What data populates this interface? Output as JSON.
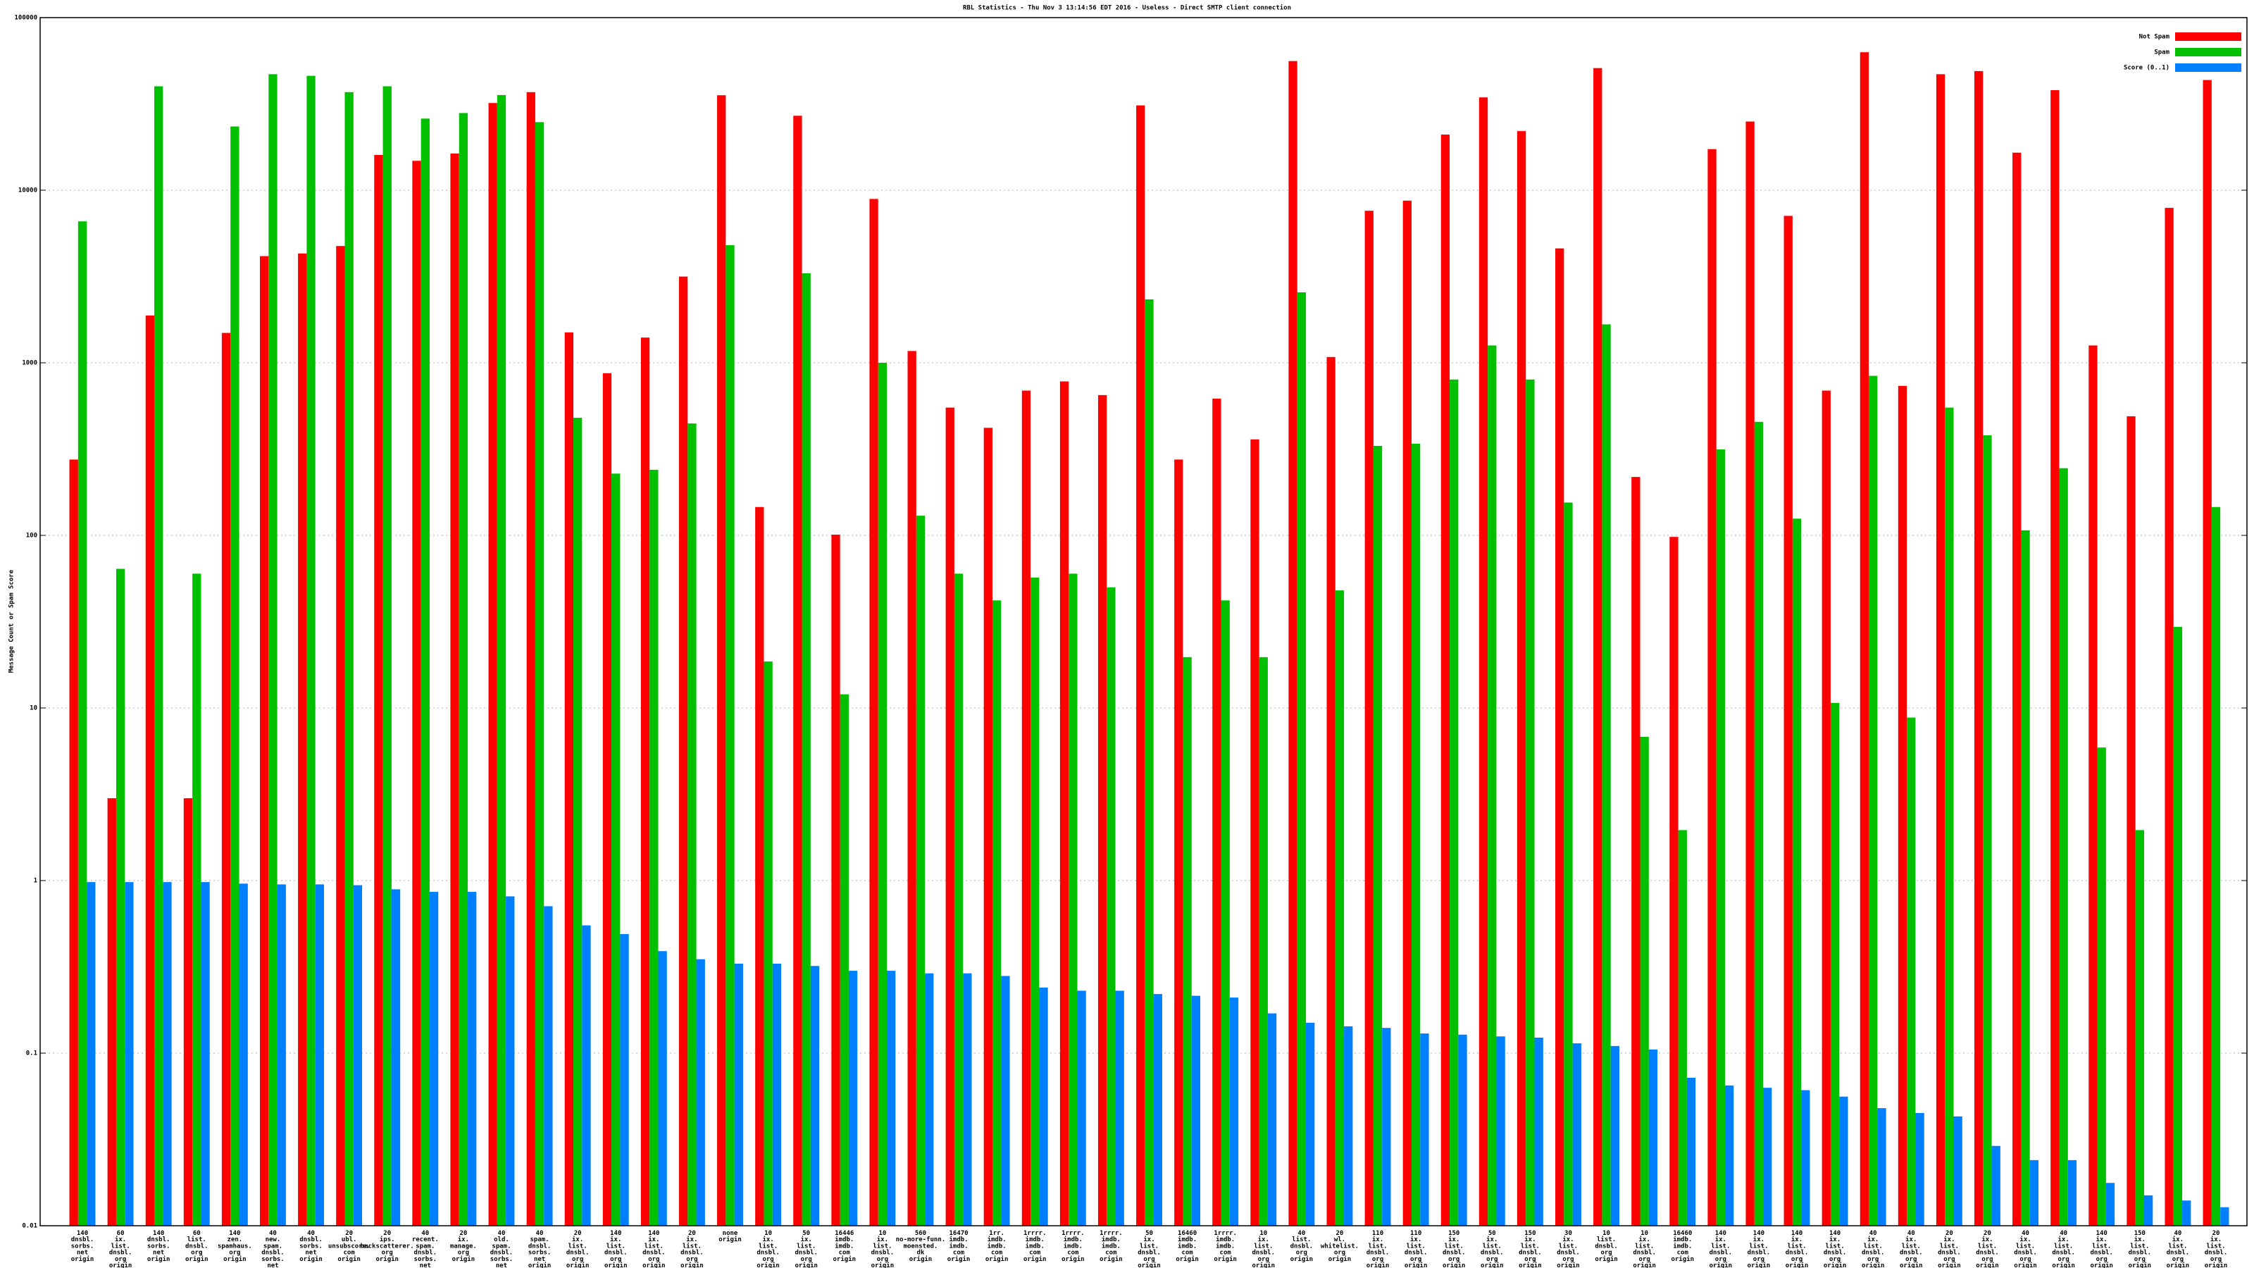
{
  "chart_data": {
    "type": "bar",
    "title": "RBL Statistics - Thu Nov  3 13:14:56 EDT 2016 - Useless - Direct SMTP client connection",
    "y_label": "Message Count or Spam Score",
    "log_scale": true,
    "grid": true,
    "legend": "upper right",
    "ylim": [
      0.01,
      100000
    ],
    "yticks": [
      0.01,
      0.1,
      1,
      10,
      100,
      1000,
      10000,
      100000
    ],
    "categories": [
      "140\ndnsbl.\nsorbs.\nnet\norigin",
      "60\nix.\nlist.\ndnsbl.\norg\norigin",
      "140\ndnsbl.\nsorbs.\nnet\norigin",
      "60\nlist.\ndnsbl.\norg\norigin",
      "140\nzen.\nspamhaus.\norg\norigin",
      "40\nnew.\nspam.\ndnsbl.\nsorbs.\nnet\norigin",
      "40\ndnsbl.\nsorbs.\nnet\norigin",
      "20\nubl.\nunsubscore.\ncom\norigin",
      "20\nips.\nbackscatterer.\norg\norigin",
      "40\nrecent.\nspam.\ndnsbl.\nsorbs.\nnet\norigin",
      "20\nix.\nmanage.\norg\norigin",
      "40\nold.\nspam.\ndnsbl.\nsorbs.\nnet\norigin",
      "40\nspam.\ndnsbl.\nsorbs.\nnet\norigin",
      "20\nix.\nlist.\ndnsbl.\norg\norigin",
      "140\nix.\nlist.\ndnsbl.\norg\norigin",
      "140\nix.\nlist.\ndnsbl.\norg\norigin",
      "20\nix.\nlist.\ndnsbl.\norg\norigin",
      "none\norigin",
      "10\nix.\nlist.\ndnsbl.\norg\norigin",
      "50\nix.\nlist.\ndnsbl.\norg\norigin",
      "16446\nimdb.\nimdb.\ncom\norigin",
      "10\nix.\nlist.\ndnsbl.\norg\norigin",
      "560\nno-more-funn.\nmoensted.\ndk\norigin",
      "16470\nimdb.\nimdb.\ncom\norigin",
      "1rr.\nimdb.\nimdb.\ncom\norigin",
      "1rrrr.\nimdb.\nimdb.\ncom\norigin",
      "1rrrr.\nimdb.\nimdb.\ncom\norigin",
      "1rrrr.\nimdb.\nimdb.\ncom\norigin",
      "50\nix.\nlist.\ndnsbl.\norg\norigin",
      "16460\nimdb.\nimdb.\ncom\norigin",
      "1rrrr.\nimdb.\nimdb.\ncom\norigin",
      "10\nix.\nlist.\ndnsbl.\norg\norigin",
      "40\nlist.\ndnsbl.\norg\norigin",
      "20\nwl.\nwhitelist.\norg\norigin",
      "110\nix.\nlist.\ndnsbl.\norg\norigin",
      "110\nix.\nlist.\ndnsbl.\norg\norigin",
      "150\nix.\nlist.\ndnsbl.\norg\norigin",
      "50\nix.\nlist.\ndnsbl.\norg\norigin",
      "150\nix.\nlist.\ndnsbl.\norg\norigin",
      "30\nix.\nlist.\ndnsbl.\norg\norigin",
      "10\nlist.\ndnsbl.\norg\norigin",
      "10\nix.\nlist.\ndnsbl.\norg\norigin",
      "16460\nimdb.\nimdb.\ncom\norigin",
      "140\nix.\nlist.\ndnsbl.\norg\norigin",
      "140\nix.\nlist.\ndnsbl.\norg\norigin",
      "140\nix.\nlist.\ndnsbl.\norg\norigin",
      "140\nix.\nlist.\ndnsbl.\norg\norigin",
      "40\nix.\nlist.\ndnsbl.\norg\norigin",
      "40\nix.\nlist.\ndnsbl.\norg\norigin",
      "20\nix.\nlist.\ndnsbl.\norg\norigin",
      "20\nix.\nlist.\ndnsbl.\norg\norigin",
      "40\nix.\nlist.\ndnsbl.\norg\norigin",
      "40\nix.\nlist.\ndnsbl.\norg\norigin",
      "140\nix.\nlist.\ndnsbl.\norg\norigin",
      "150\nix.\nlist.\ndnsbl.\norg\norigin",
      "40\nix.\nlist.\ndnsbl.\norg\norigin",
      "20\nix.\nlist.\ndnsbl.\norg\norigin"
    ],
    "series": [
      {
        "name": "Not Spam",
        "color": "#ff0000",
        "values": [
          275,
          3,
          1880,
          3,
          1490,
          4150,
          4300,
          4750,
          16000,
          14800,
          16300,
          32000,
          37000,
          1500,
          870,
          1400,
          3160,
          35500,
          146,
          27000,
          101,
          8900,
          1170,
          550,
          420,
          690,
          780,
          650,
          31000,
          275,
          620,
          360,
          56000,
          1080,
          7600,
          8700,
          21000,
          34500,
          22000,
          4600,
          51000,
          218,
          98,
          17300,
          25000,
          7100,
          690,
          63000,
          735,
          47000,
          49000,
          16500,
          38000,
          1260,
          490,
          7900,
          43500
        ]
      },
      {
        "name": "Spam",
        "color": "#00c000",
        "values": [
          6600,
          64,
          40000,
          60,
          23400,
          47000,
          46000,
          37000,
          40000,
          26000,
          28000,
          35600,
          24800,
          480,
          228,
          240,
          445,
          4800,
          18.6,
          3300,
          12,
          1000,
          130,
          60,
          42,
          57,
          60,
          50,
          2330,
          19.7,
          42,
          19.7,
          2560,
          48,
          330,
          340,
          800,
          1260,
          800,
          155,
          1670,
          6.8,
          1.96,
          315,
          455,
          125,
          10.7,
          840,
          8.8,
          550,
          380,
          107,
          245,
          5.9,
          1.96,
          29.5,
          146
        ]
      },
      {
        "name": "Score (0..1)",
        "color": "#0080ff",
        "values": [
          0.98,
          0.98,
          0.98,
          0.98,
          0.96,
          0.95,
          0.95,
          0.94,
          0.89,
          0.86,
          0.86,
          0.81,
          0.71,
          0.55,
          0.49,
          0.39,
          0.35,
          0.33,
          0.33,
          0.32,
          0.3,
          0.3,
          0.29,
          0.29,
          0.28,
          0.24,
          0.23,
          0.23,
          0.22,
          0.215,
          0.21,
          0.17,
          0.15,
          0.143,
          0.14,
          0.13,
          0.128,
          0.125,
          0.123,
          0.114,
          0.11,
          0.105,
          0.072,
          0.065,
          0.063,
          0.061,
          0.056,
          0.048,
          0.045,
          0.043,
          0.029,
          0.024,
          0.024,
          0.0177,
          0.015,
          0.014,
          0.0128
        ]
      }
    ]
  }
}
